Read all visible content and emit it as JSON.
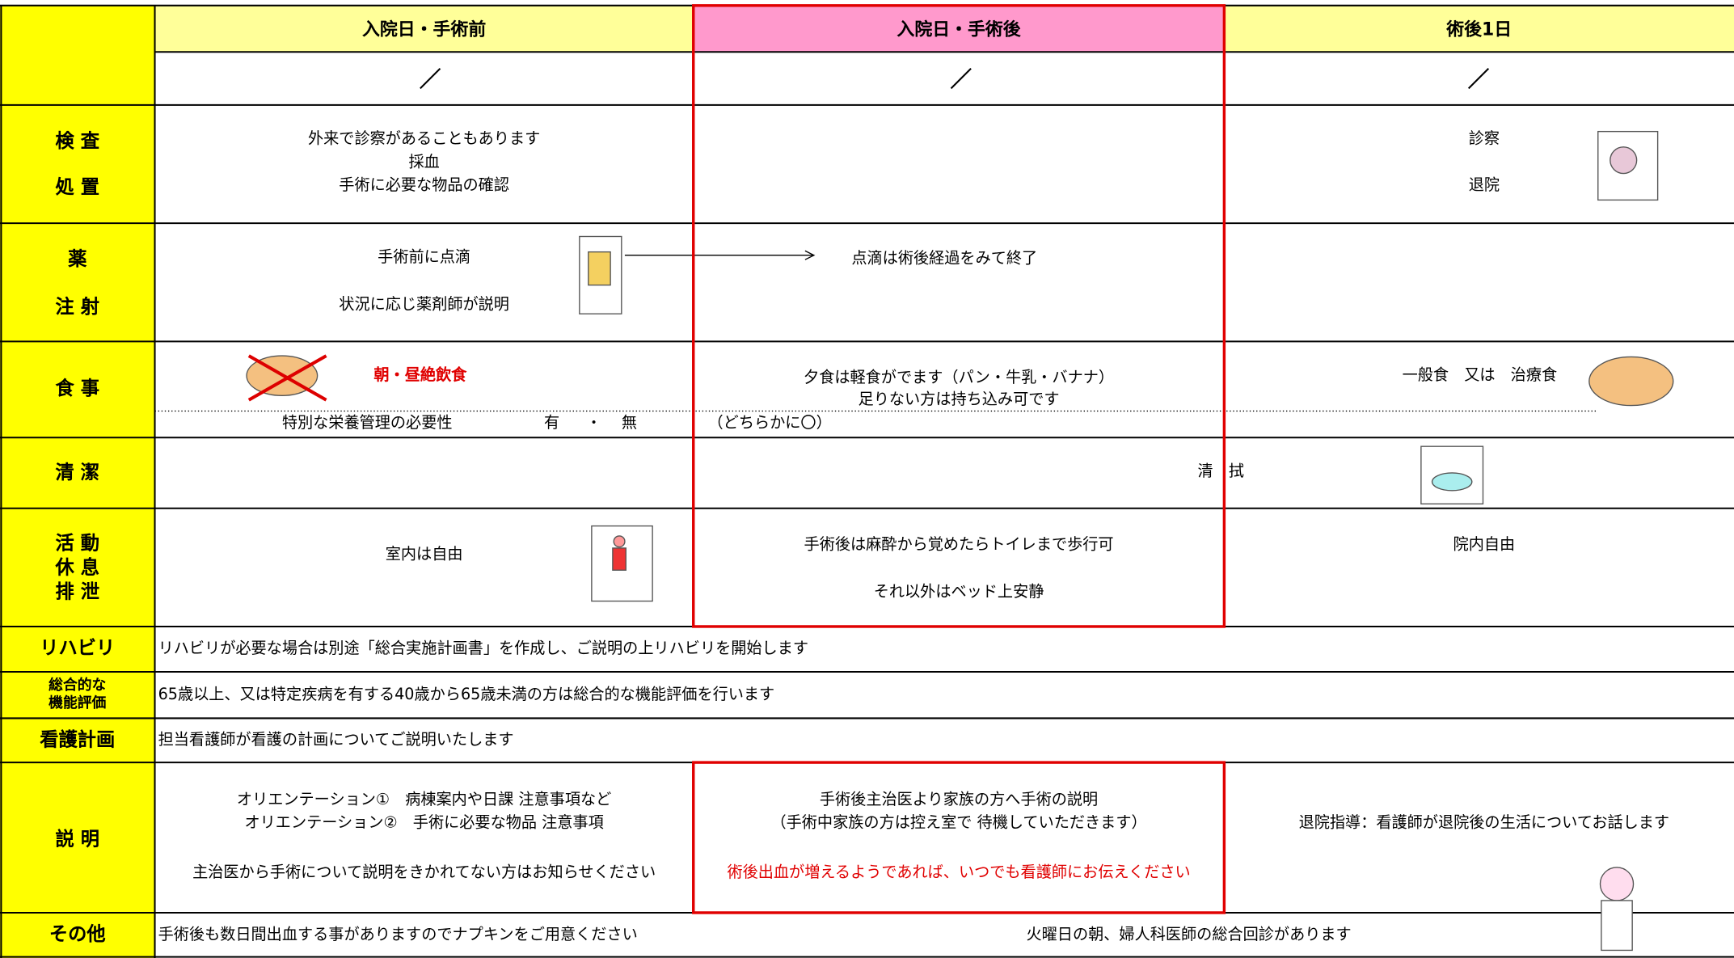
{
  "header": {
    "columns": [
      "入院日・手術前",
      "入院日・手術後",
      "術後1日"
    ]
  },
  "rows": {
    "exam": {
      "label": [
        "検 査",
        "処 置"
      ],
      "col1": [
        "外来で診察があることもあります",
        "採血",
        "手術に必要な物品の確認"
      ],
      "col3": [
        "診察",
        "退院"
      ]
    },
    "medicine": {
      "label": [
        "薬",
        "注 射"
      ],
      "col1": [
        "手術前に点滴",
        "状況に応じ薬剤師が説明"
      ],
      "col2": "点滴は術後経過をみて終了"
    },
    "meal": {
      "label": "食 事",
      "col1": "朝・昼絶飲食",
      "col2": [
        "夕食は軽食がでます（パン・牛乳・バナナ）",
        "足りない方は持ち込み可です"
      ],
      "col3": "一般食　又は　治療食",
      "nutrition": [
        "特別な栄養管理の必要性",
        "有",
        "・",
        "無",
        "（どちらかに〇）"
      ]
    },
    "hygiene": {
      "label": "清 潔",
      "text": "清　拭"
    },
    "activity": {
      "label": [
        "活 動",
        "休 息",
        "排 泄"
      ],
      "col1": "室内は自由",
      "col2": [
        "手術後は麻酔から覚めたらトイレまで歩行可",
        "それ以外はベッド上安静"
      ],
      "col3": "院内自由"
    },
    "rehab": {
      "label": "リハビリ",
      "text": "リハビリが必要な場合は別途「総合実施計画書」を作成し、ご説明の上リハビリを開始します"
    },
    "evaluation": {
      "label": [
        "総合的な",
        "機能評価"
      ],
      "text": "65歳以上、又は特定疾病を有する40歳から65歳未満の方は総合的な機能評価を行います"
    },
    "nursing": {
      "label": "看護計画",
      "text": "担当看護師が看護の計画についてご説明いたします"
    },
    "explanation": {
      "label": "説 明",
      "col1": [
        "オリエンテーション①　病棟案内や日課 注意事項など",
        "オリエンテーション②　手術に必要な物品 注意事項",
        "主治医から手術について説明をきかれてない方はお知らせください"
      ],
      "col2": [
        "手術後主治医より家族の方へ手術の説明",
        "（手術中家族の方は控え室で 待機していただきます）",
        "術後出血が増えるようであれば、いつでも看護師にお伝えください"
      ],
      "col3": "退院指導：看護師が退院後の生活についてお話します"
    },
    "other": {
      "label": "その他",
      "col1": "手術後も数日間出血する事がありますのでナプキンをご用意ください",
      "col2": "火曜日の朝、婦人科医師の総合回診があります"
    }
  }
}
